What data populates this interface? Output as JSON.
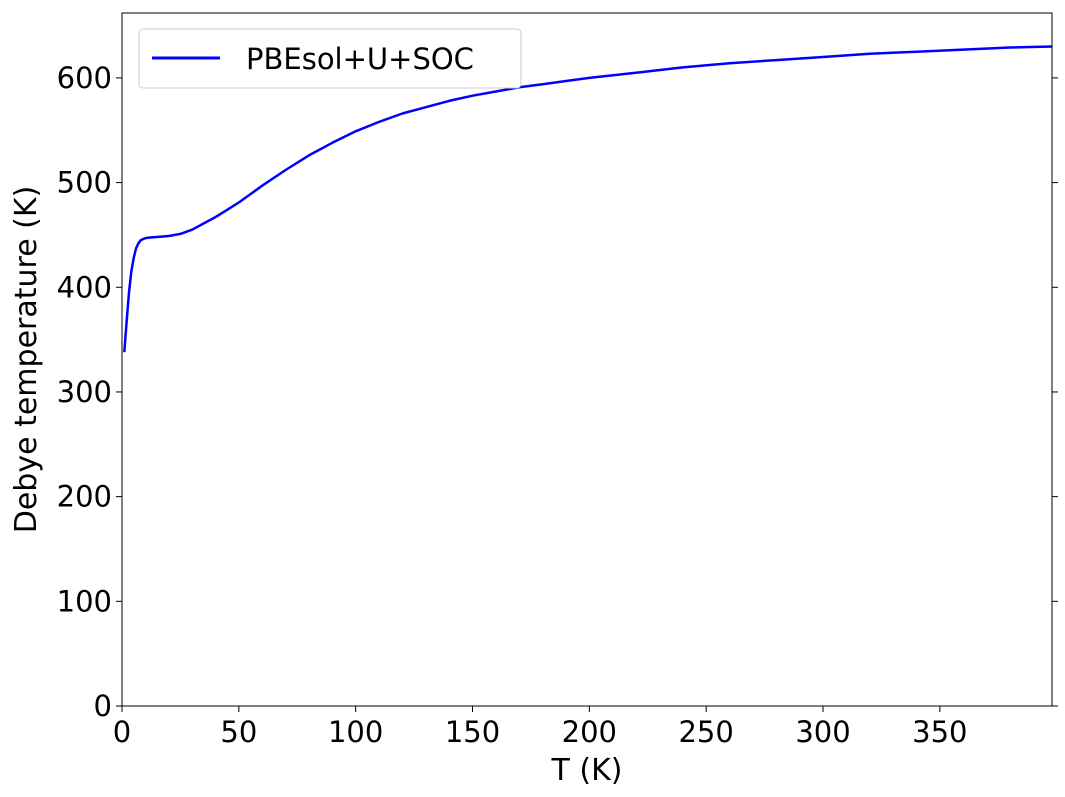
{
  "chart_data": {
    "type": "line",
    "title": "",
    "xlabel": "T (K)",
    "ylabel": "Debye temperature (K)",
    "xlim": [
      0,
      398
    ],
    "ylim": [
      0,
      662
    ],
    "xticks": [
      0,
      50,
      100,
      150,
      200,
      250,
      300,
      350
    ],
    "yticks": [
      0,
      100,
      200,
      300,
      400,
      500,
      600
    ],
    "grid": false,
    "legend_position": "top-left",
    "series": [
      {
        "name": "PBEsol+U+SOC",
        "color": "#0000ff",
        "x": [
          1,
          2,
          3,
          4,
          5,
          6,
          7,
          8,
          9,
          10,
          12,
          15,
          20,
          25,
          30,
          35,
          40,
          45,
          50,
          60,
          70,
          80,
          90,
          100,
          110,
          120,
          130,
          140,
          150,
          160,
          170,
          180,
          190,
          200,
          220,
          240,
          260,
          280,
          300,
          320,
          340,
          360,
          380,
          398
        ],
        "y": [
          338,
          368,
          395,
          415,
          428,
          437,
          442,
          445,
          446,
          447,
          447.5,
          448,
          449,
          451,
          455,
          461,
          467,
          474,
          481,
          497,
          512,
          526,
          538,
          549,
          558,
          566,
          572,
          578,
          583,
          587,
          591,
          594,
          597,
          600,
          605,
          610,
          614,
          617,
          620,
          623,
          625,
          627,
          629,
          630
        ]
      }
    ]
  }
}
